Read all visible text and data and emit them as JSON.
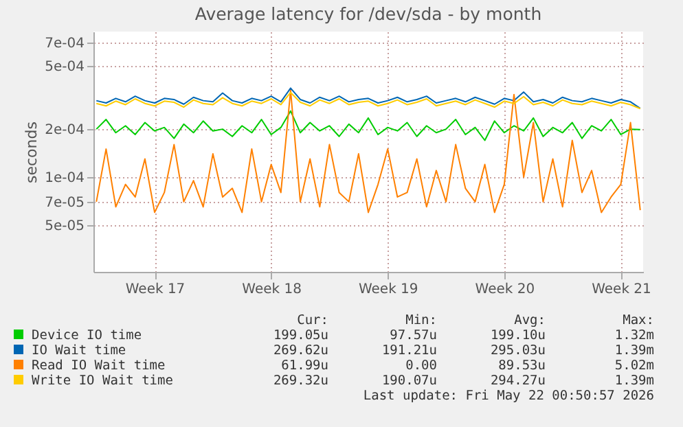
{
  "chart_data": {
    "type": "line",
    "title": "Average latency for /dev/sda - by month",
    "ylabel": "seconds",
    "log": "y",
    "grid": true,
    "legend": "bottom",
    "marker": "none",
    "line_style": "solid",
    "categories": [
      null,
      null,
      null,
      null,
      null,
      null,
      "Week 17",
      null,
      null,
      null,
      null,
      null,
      null,
      null,
      null,
      null,
      null,
      null,
      "Week 18",
      null,
      null,
      null,
      null,
      null,
      null,
      null,
      null,
      null,
      null,
      null,
      "Week 19",
      null,
      null,
      null,
      null,
      null,
      null,
      null,
      null,
      null,
      null,
      null,
      "Week 20",
      null,
      null,
      null,
      null,
      null,
      null,
      null,
      null,
      null,
      null,
      null,
      "Week 21",
      null,
      null
    ],
    "ylim": [
      2.54e-05,
      0.00082
    ],
    "yticks": [
      {
        "value": 5e-05,
        "label": "5e-05"
      },
      {
        "value": 7e-05,
        "label": "7e-05"
      },
      {
        "value": 0.0001,
        "label": "1e-04"
      },
      {
        "value": 0.0002,
        "label": "2e-04"
      },
      {
        "value": 0.0005,
        "label": "5e-04"
      },
      {
        "value": 0.0007,
        "label": "7e-04"
      }
    ],
    "series": [
      {
        "name": "Device IO time",
        "color": "#00cc00",
        "values": [
          0.0002,
          0.00023,
          0.00019,
          0.00021,
          0.000185,
          0.00022,
          0.000195,
          0.000205,
          0.000175,
          0.000215,
          0.00019,
          0.000225,
          0.000195,
          0.0002,
          0.00018,
          0.00021,
          0.00019,
          0.00023,
          0.000185,
          0.000205,
          0.00026,
          0.00019,
          0.00022,
          0.000195,
          0.00021,
          0.00018,
          0.000215,
          0.00019,
          0.000235,
          0.000185,
          0.000205,
          0.000195,
          0.00022,
          0.00018,
          0.00021,
          0.00019,
          0.0002,
          0.00023,
          0.000185,
          0.000205,
          0.00017,
          0.000225,
          0.00019,
          0.00021,
          0.000195,
          0.000235,
          0.00018,
          0.000205,
          0.00019,
          0.00022,
          0.000175,
          0.00021,
          0.000195,
          0.00023,
          0.000185,
          0.0002,
          0.000199
        ]
      },
      {
        "name": "IO Wait time",
        "color": "#0066b3",
        "values": [
          0.000302,
          0.000292,
          0.000312,
          0.000297,
          0.000322,
          0.000302,
          0.000292,
          0.000312,
          0.000307,
          0.000287,
          0.000317,
          0.000302,
          0.000297,
          0.000337,
          0.000302,
          0.000292,
          0.000312,
          0.000302,
          0.000322,
          0.000297,
          0.000362,
          0.000307,
          0.000292,
          0.000317,
          0.000302,
          0.000322,
          0.000297,
          0.000307,
          0.000312,
          0.000292,
          0.000302,
          0.000317,
          0.000297,
          0.000307,
          0.000322,
          0.000292,
          0.000302,
          0.000312,
          0.000297,
          0.000317,
          0.000302,
          0.000287,
          0.000312,
          0.000302,
          0.000342,
          0.000297,
          0.000307,
          0.000292,
          0.000317,
          0.000302,
          0.000297,
          0.000312,
          0.000302,
          0.000292,
          0.000307,
          0.000297,
          0.00027
        ]
      },
      {
        "name": "Read IO Wait time",
        "color": "#ff8000",
        "values": [
          7e-05,
          0.00015,
          6.5e-05,
          9e-05,
          7.5e-05,
          0.00013,
          6e-05,
          8e-05,
          0.00016,
          7e-05,
          9.5e-05,
          6.5e-05,
          0.00014,
          7.5e-05,
          8.5e-05,
          6e-05,
          0.00015,
          7e-05,
          0.00012,
          8e-05,
          0.00035,
          7e-05,
          0.00013,
          6.5e-05,
          0.00016,
          8e-05,
          7e-05,
          0.00014,
          6e-05,
          9e-05,
          0.00015,
          7.5e-05,
          8e-05,
          0.00013,
          6.5e-05,
          0.00011,
          7e-05,
          0.00016,
          8.5e-05,
          7e-05,
          0.00012,
          6e-05,
          9e-05,
          0.00033,
          0.0001,
          0.00022,
          7e-05,
          0.00013,
          6.5e-05,
          0.00017,
          8e-05,
          0.00011,
          6e-05,
          7.5e-05,
          9e-05,
          0.00022,
          6.2e-05
        ]
      },
      {
        "name": "Write IO Wait time",
        "color": "#ffcc00",
        "values": [
          0.00029,
          0.00028,
          0.0003,
          0.000285,
          0.00031,
          0.00029,
          0.00028,
          0.0003,
          0.000295,
          0.000275,
          0.000305,
          0.00029,
          0.000285,
          0.000315,
          0.00029,
          0.00028,
          0.0003,
          0.00029,
          0.00031,
          0.000285,
          0.00034,
          0.000295,
          0.00028,
          0.000305,
          0.00029,
          0.00031,
          0.000285,
          0.000295,
          0.0003,
          0.00028,
          0.00029,
          0.000305,
          0.000285,
          0.000295,
          0.00031,
          0.00028,
          0.00029,
          0.0003,
          0.000285,
          0.000305,
          0.00029,
          0.000275,
          0.0003,
          0.00029,
          0.00032,
          0.000285,
          0.000295,
          0.00028,
          0.000305,
          0.00029,
          0.000285,
          0.0003,
          0.00029,
          0.00028,
          0.000295,
          0.000285,
          0.000269
        ]
      }
    ],
    "annotations": [
      "Cur:",
      "Min:",
      "Avg:",
      "Max:",
      "199.05u",
      "97.57u",
      "199.10u",
      "1.32m",
      "269.62u",
      "191.21u",
      "295.03u",
      "1.39m",
      "61.99u",
      "0.00",
      "89.53u",
      "5.02m",
      "269.32u",
      "190.07u",
      "294.27u",
      "1.39m",
      "Last update: Fri May 22 00:50:57 2026"
    ]
  }
}
